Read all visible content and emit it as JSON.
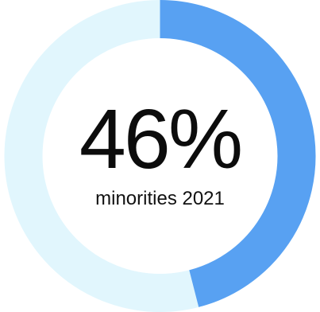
{
  "chart_data": {
    "type": "pie",
    "variant": "donut",
    "value_percent": 46,
    "center_value": "46%",
    "center_label": "minorities 2021",
    "colors": {
      "filled": "#58a1f2",
      "track": "#e1f6fd"
    }
  }
}
